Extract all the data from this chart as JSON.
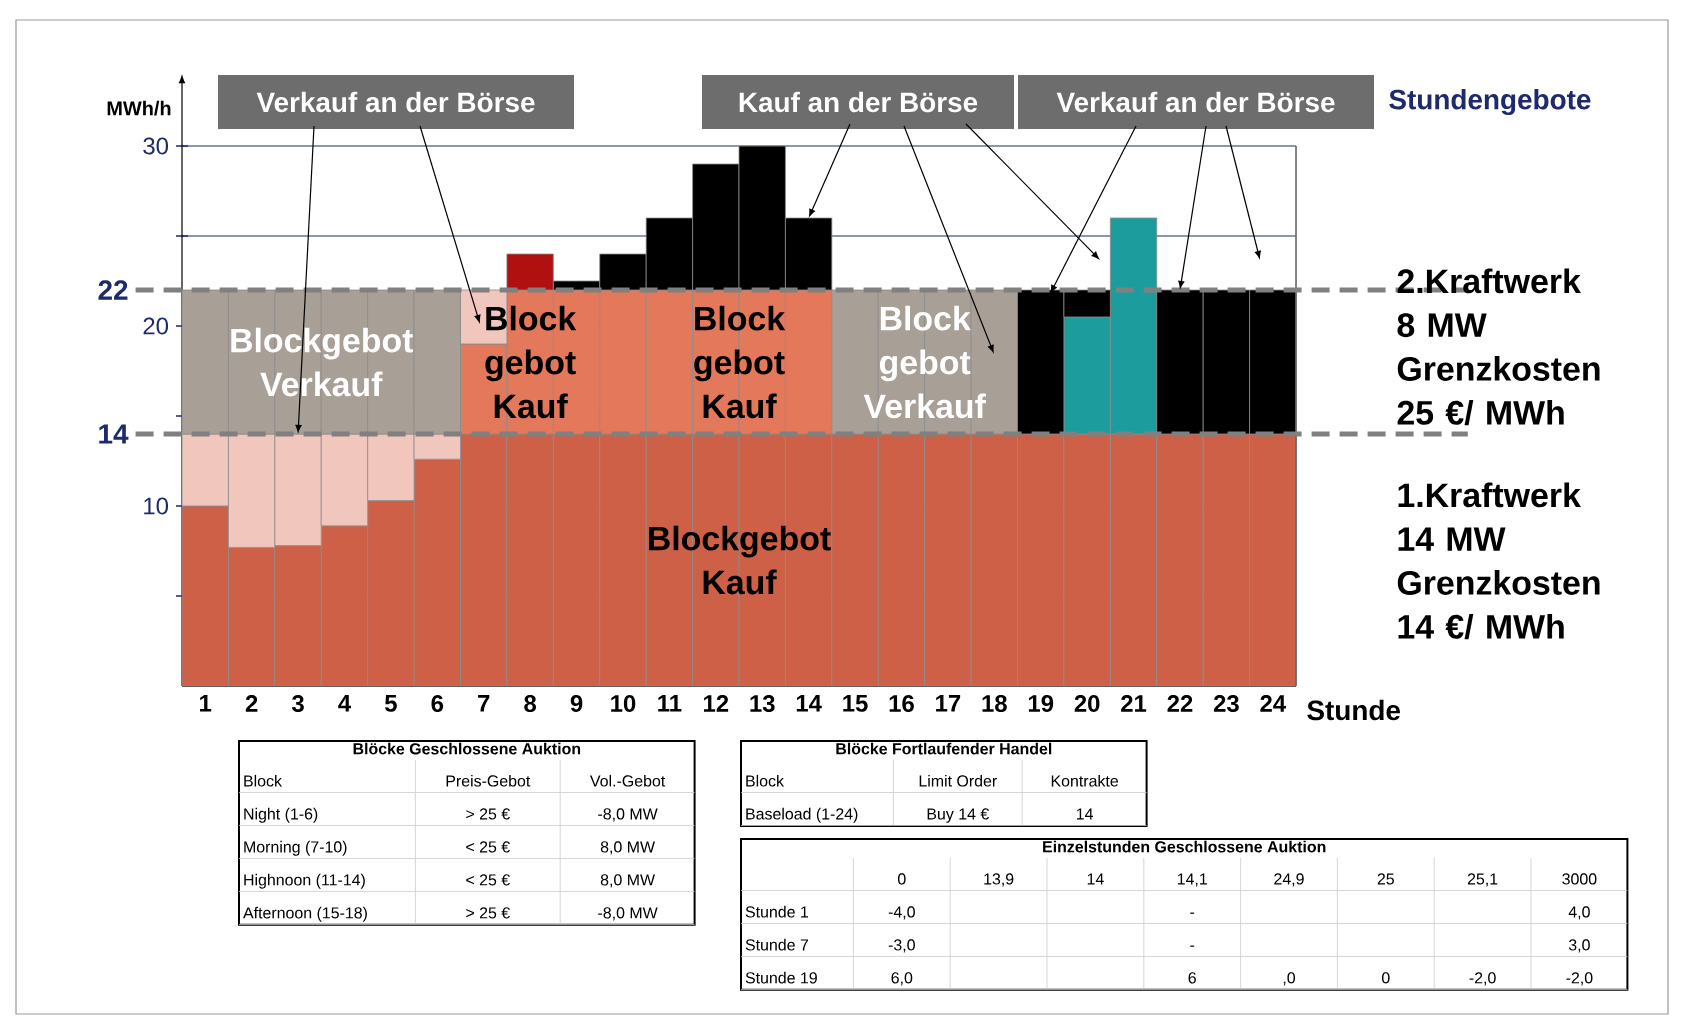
{
  "chart_data": {
    "type": "bar",
    "stacked": true,
    "xlabel": "Stunde",
    "ylabel": "MWh/h",
    "categories": [
      "1",
      "2",
      "3",
      "4",
      "5",
      "6",
      "7",
      "8",
      "9",
      "10",
      "11",
      "12",
      "13",
      "14",
      "15",
      "16",
      "17",
      "18",
      "19",
      "20",
      "21",
      "22",
      "23",
      "24"
    ],
    "series": [
      {
        "color": "#cf6048",
        "values": [
          10,
          7.7,
          7.8,
          8.9,
          10.3,
          12.6,
          14,
          14,
          14,
          14,
          14,
          14,
          14,
          14,
          14,
          14,
          14,
          14,
          14,
          14,
          14,
          14,
          14,
          14
        ]
      },
      {
        "color": "#e3785b",
        "values": [
          null,
          null,
          null,
          null,
          null,
          null,
          5,
          8,
          8,
          8,
          8,
          8,
          8,
          8,
          null,
          null,
          null,
          null,
          null,
          null,
          null,
          null,
          null,
          null
        ]
      },
      {
        "color": "#f0c6bd",
        "values": [
          4,
          6.3,
          6.2,
          5.1,
          3.7,
          1.4,
          3,
          null,
          null,
          null,
          null,
          null,
          null,
          null,
          null,
          null,
          null,
          null,
          null,
          null,
          null,
          null,
          null,
          null
        ]
      },
      {
        "color": "#a89f97",
        "values": [
          8,
          8,
          8,
          8,
          8,
          8,
          null,
          null,
          null,
          null,
          null,
          null,
          null,
          null,
          8,
          8,
          8,
          8,
          null,
          null,
          null,
          null,
          null,
          null
        ]
      },
      {
        "color": "#1c9c9c",
        "values": [
          null,
          null,
          null,
          null,
          null,
          null,
          null,
          null,
          null,
          null,
          null,
          null,
          null,
          null,
          null,
          null,
          null,
          null,
          null,
          6.5,
          12,
          null,
          null,
          null
        ]
      },
      {
        "color": "#000000",
        "values": [
          null,
          null,
          null,
          null,
          null,
          null,
          null,
          2,
          0.5,
          2,
          4,
          7,
          8,
          4,
          null,
          null,
          null,
          null,
          8,
          1.5,
          null,
          8,
          8,
          8
        ],
        "colors": [
          null,
          null,
          null,
          null,
          null,
          null,
          null,
          "#b01010",
          null,
          null,
          null,
          null,
          null,
          null,
          null,
          null,
          null,
          null,
          null,
          null,
          null,
          null,
          null,
          null
        ]
      }
    ],
    "ylim": [
      0,
      34
    ],
    "yticks": [
      {
        "value": 5,
        "label": null
      },
      10,
      {
        "value": 15,
        "label": null
      },
      20,
      {
        "value": 25,
        "label": null
      },
      30
    ],
    "grid": "y",
    "ref_lines": [
      {
        "axis": "y",
        "value": 22,
        "label": "22",
        "color": "#808080",
        "line_style": "dashed"
      },
      {
        "axis": "y",
        "value": 14,
        "label": "14",
        "color": "#808080",
        "line_style": "dashed"
      }
    ],
    "annotations": [
      {
        "text": "Verkauf an der Börse",
        "x": "3",
        "y": 14
      },
      {
        "text": "Kauf an der Börse",
        "x": "14",
        "y": 26
      },
      {
        "text": "Verkauf an der Börse",
        "x": "22",
        "y": 22
      },
      "Stundengebote",
      "Blockgebot Verkauf",
      "Block gebot Kauf",
      "Block gebot Kauf",
      "Block gebot Verkauf",
      "Blockgebot Kauf",
      "2.Kraftwerk 8 MW Grenzkosten 25 €/ MWh",
      "1.Kraftwerk 14 MW Grenzkosten 14 €/ MWh",
      "Blöcke Geschlossene Auktion",
      "Block",
      "Preis-Gebot",
      "Vol.-Gebot",
      "Night (1-6)",
      "> 25 €",
      "-8,0 MW",
      "Morning (7-10)",
      "< 25 €",
      "8,0 MW",
      "Highnoon (11-14)",
      "< 25 €",
      "8,0 MW",
      "Afternoon (15-18)",
      "> 25 €",
      "-8,0 MW",
      "Blöcke Fortlaufender Handel",
      "Block",
      "Limit Order",
      "Kontrakte",
      "Baseload (1-24)",
      "Buy 14 €",
      "14",
      "Einzelstunden Geschlossene Auktion",
      null,
      "0",
      "13,9",
      "14",
      "14,1",
      "24,9",
      "25",
      "25,1",
      "3000",
      "Stunde 1",
      "-4,0",
      null,
      null,
      "-",
      null,
      null,
      null,
      "4,0",
      "Stunde 7",
      "-3,0",
      null,
      null,
      "-",
      null,
      null,
      null,
      "3,0",
      "Stunde 19",
      "6,0",
      null,
      null,
      "6",
      ",0",
      "0",
      "-2,0",
      "-2,0"
    ]
  }
}
